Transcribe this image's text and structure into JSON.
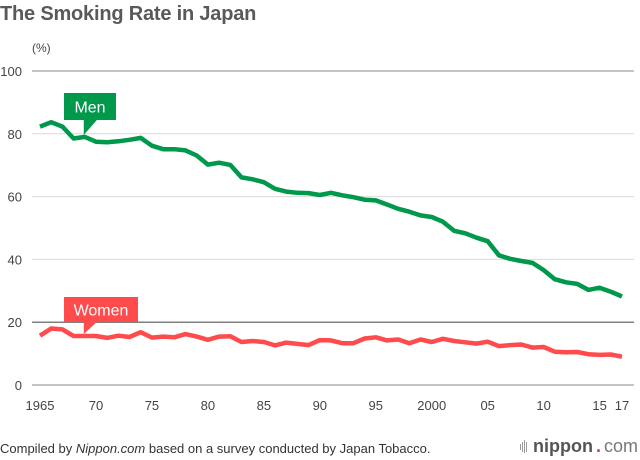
{
  "title": "The Smoking Rate in Japan",
  "caption": {
    "prefix": "Compiled by ",
    "source": "Nippon.com",
    "suffix": " based on a survey conducted by Japan Tobacco."
  },
  "logo": {
    "name": "nippon",
    "dot": ".",
    "tld": "com"
  },
  "colors": {
    "men": "#00984a",
    "women": "#ff4b4b",
    "grid": "#d9d9d9",
    "axis": "#666666"
  },
  "chart_data": {
    "type": "line",
    "title": "The Smoking Rate in Japan",
    "xlabel": "",
    "ylabel": "(%)",
    "ylim": [
      0,
      100
    ],
    "xlim": [
      1965,
      2017
    ],
    "yticks": [
      0,
      20,
      40,
      60,
      80,
      100
    ],
    "xticks": [
      {
        "value": 1965,
        "label": "1965"
      },
      {
        "value": 1970,
        "label": "70"
      },
      {
        "value": 1975,
        "label": "75"
      },
      {
        "value": 1980,
        "label": "80"
      },
      {
        "value": 1985,
        "label": "85"
      },
      {
        "value": 1990,
        "label": "90"
      },
      {
        "value": 1995,
        "label": "95"
      },
      {
        "value": 2000,
        "label": "2000"
      },
      {
        "value": 2005,
        "label": "05"
      },
      {
        "value": 2010,
        "label": "10"
      },
      {
        "value": 2015,
        "label": "15"
      },
      {
        "value": 2017,
        "label": "17"
      }
    ],
    "grid": true,
    "legend": "inline-labels",
    "x": [
      1965,
      1966,
      1967,
      1968,
      1969,
      1970,
      1971,
      1972,
      1973,
      1974,
      1975,
      1976,
      1977,
      1978,
      1979,
      1980,
      1981,
      1982,
      1983,
      1984,
      1985,
      1986,
      1987,
      1988,
      1989,
      1990,
      1991,
      1992,
      1993,
      1994,
      1995,
      1996,
      1997,
      1998,
      1999,
      2000,
      2001,
      2002,
      2003,
      2004,
      2005,
      2006,
      2007,
      2008,
      2009,
      2010,
      2011,
      2012,
      2013,
      2014,
      2015,
      2016,
      2017
    ],
    "series": [
      {
        "name": "Men",
        "label_year": 1969,
        "values": [
          82.3,
          83.7,
          82.3,
          78.5,
          79.0,
          77.5,
          77.3,
          77.6,
          78.1,
          78.7,
          76.2,
          75.1,
          75.1,
          74.7,
          73.1,
          70.2,
          70.8,
          70.1,
          66.1,
          65.5,
          64.6,
          62.5,
          61.6,
          61.2,
          61.1,
          60.5,
          61.2,
          60.4,
          59.8,
          59.0,
          58.8,
          57.5,
          56.1,
          55.2,
          54.0,
          53.5,
          52.0,
          49.1,
          48.3,
          46.9,
          45.8,
          41.3,
          40.2,
          39.5,
          38.9,
          36.6,
          33.7,
          32.7,
          32.2,
          30.3,
          31.0,
          29.7,
          28.2
        ]
      },
      {
        "name": "Women",
        "label_year": 1969,
        "values": [
          15.7,
          18.0,
          17.7,
          15.6,
          15.6,
          15.6,
          15.0,
          15.7,
          15.3,
          16.8,
          15.1,
          15.4,
          15.2,
          16.2,
          15.4,
          14.4,
          15.4,
          15.5,
          13.7,
          14.0,
          13.7,
          12.6,
          13.5,
          13.1,
          12.7,
          14.3,
          14.2,
          13.3,
          13.3,
          14.8,
          15.2,
          14.2,
          14.5,
          13.3,
          14.5,
          13.7,
          14.7,
          14.0,
          13.6,
          13.2,
          13.8,
          12.4,
          12.7,
          12.9,
          11.9,
          12.1,
          10.6,
          10.4,
          10.5,
          9.8,
          9.6,
          9.7,
          9.0
        ]
      }
    ]
  }
}
